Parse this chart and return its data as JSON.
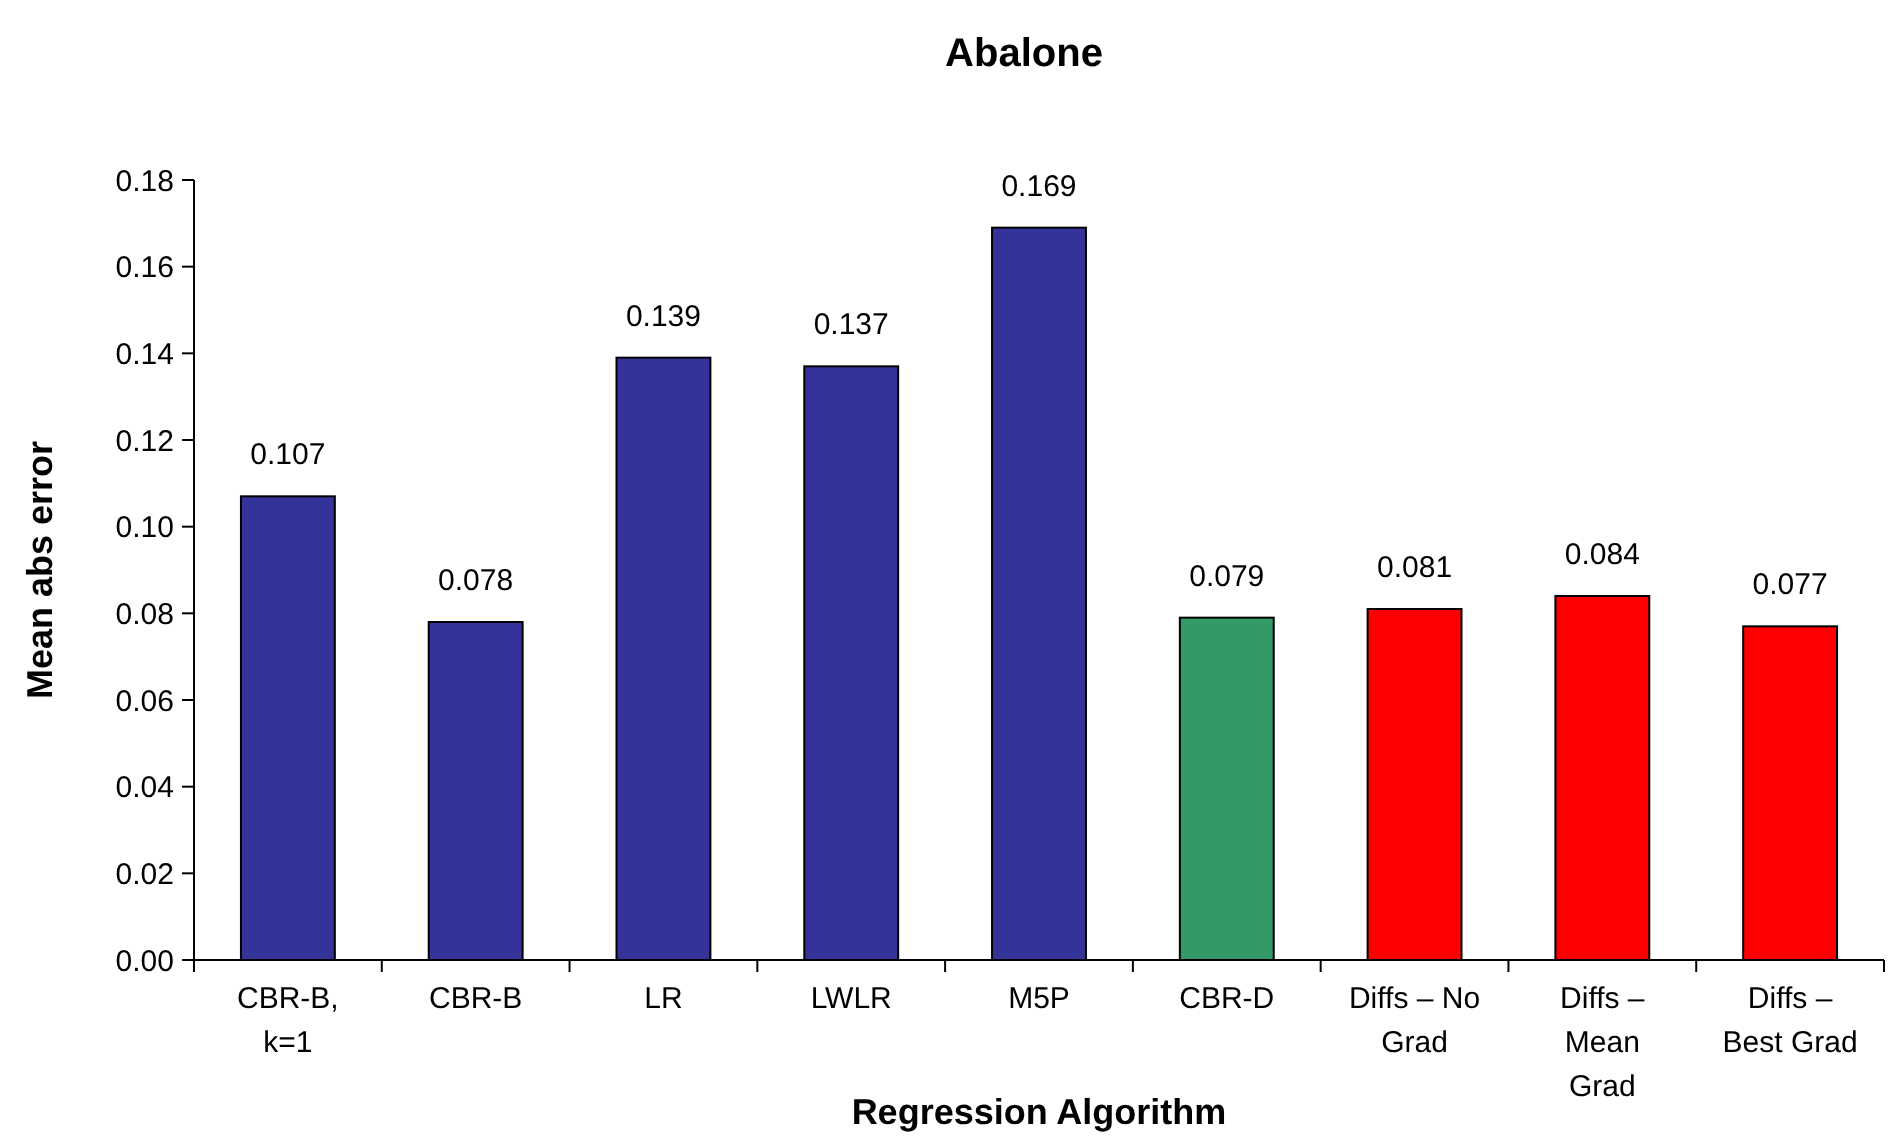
{
  "chart_data": {
    "type": "bar",
    "title": "Abalone",
    "xlabel": "Regression Algorithm",
    "ylabel": "Mean abs error",
    "categories": [
      "CBR-B, k=1",
      "CBR-B",
      "LR",
      "LWLR",
      "M5P",
      "CBR-D",
      "Diffs – No Grad",
      "Diffs – Mean Grad",
      "Diffs – Best Grad"
    ],
    "values": [
      0.107,
      0.078,
      0.139,
      0.137,
      0.169,
      0.079,
      0.081,
      0.084,
      0.077
    ],
    "colors": [
      "#333399",
      "#333399",
      "#333399",
      "#333399",
      "#333399",
      "#339966",
      "#ff0000",
      "#ff0000",
      "#ff0000"
    ],
    "ylim": [
      0,
      0.18
    ],
    "yticks": [
      {
        "value": 0,
        "label": "0.00"
      },
      {
        "value": 0.02,
        "label": "0.02"
      },
      {
        "value": 0.04,
        "label": "0.04"
      },
      {
        "value": 0.06,
        "label": "0.06"
      },
      {
        "value": 0.08,
        "label": "0.08"
      },
      {
        "value": 0.1,
        "label": "0.10"
      },
      {
        "value": 0.12,
        "label": "0.12"
      },
      {
        "value": 0.14,
        "label": "0.14"
      },
      {
        "value": 0.16,
        "label": "0.16"
      },
      {
        "value": 0.18,
        "label": "0.18"
      }
    ],
    "data_labels": true,
    "grid": false
  }
}
